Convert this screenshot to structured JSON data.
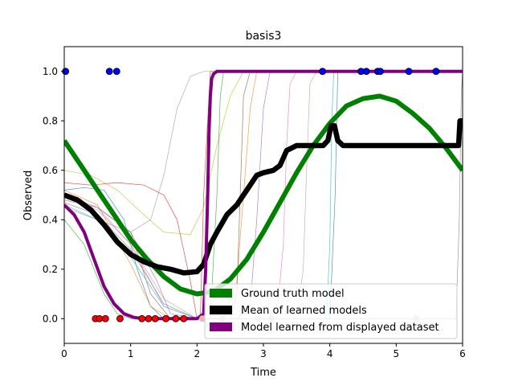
{
  "chart_data": {
    "type": "line",
    "title": "basis3",
    "xlabel": "Time",
    "ylabel": "Observed",
    "xlim": [
      0,
      6
    ],
    "ylim": [
      -0.1,
      1.1
    ],
    "xticks": [
      0,
      1,
      2,
      3,
      4,
      5,
      6
    ],
    "yticks": [
      0.0,
      0.2,
      0.4,
      0.6,
      0.8,
      1.0
    ],
    "xtick_labels": [
      "0",
      "1",
      "2",
      "3",
      "4",
      "5",
      "6"
    ],
    "ytick_labels": [
      "0.0",
      "0.2",
      "0.4",
      "0.6",
      "0.8",
      "1.0"
    ],
    "grid": false,
    "legend_position": "lower-right",
    "series": [
      {
        "name": "Ground truth model",
        "color": "#008000",
        "x": [
          0,
          0.25,
          0.5,
          0.75,
          1.0,
          1.25,
          1.5,
          1.75,
          2.0,
          2.25,
          2.5,
          2.75,
          3.0,
          3.25,
          3.5,
          3.75,
          4.0,
          4.25,
          4.5,
          4.75,
          5.0,
          5.25,
          5.5,
          5.75,
          6.0
        ],
        "y": [
          0.72,
          0.62,
          0.52,
          0.42,
          0.32,
          0.24,
          0.17,
          0.12,
          0.1,
          0.11,
          0.16,
          0.24,
          0.35,
          0.47,
          0.59,
          0.7,
          0.79,
          0.86,
          0.89,
          0.9,
          0.88,
          0.83,
          0.77,
          0.69,
          0.6
        ]
      },
      {
        "name": "Mean of learned models",
        "color": "#000000",
        "x": [
          0,
          0.2,
          0.4,
          0.6,
          0.8,
          1.0,
          1.2,
          1.4,
          1.6,
          1.8,
          2.0,
          2.1,
          2.2,
          2.3,
          2.45,
          2.6,
          2.7,
          2.8,
          2.9,
          3.0,
          3.15,
          3.25,
          3.35,
          3.5,
          3.7,
          3.9,
          3.97,
          4.02,
          4.07,
          4.12,
          4.2,
          4.4,
          4.8,
          5.2,
          5.6,
          5.94,
          5.96,
          6.0
        ],
        "y": [
          0.5,
          0.48,
          0.44,
          0.38,
          0.31,
          0.26,
          0.23,
          0.21,
          0.2,
          0.185,
          0.19,
          0.22,
          0.3,
          0.35,
          0.42,
          0.46,
          0.5,
          0.54,
          0.58,
          0.59,
          0.6,
          0.62,
          0.68,
          0.7,
          0.7,
          0.7,
          0.72,
          0.78,
          0.78,
          0.72,
          0.7,
          0.7,
          0.7,
          0.7,
          0.7,
          0.7,
          0.8,
          0.8
        ]
      },
      {
        "name": "Model learned from displayed dataset",
        "color": "#800080",
        "x": [
          0,
          0.15,
          0.3,
          0.45,
          0.6,
          0.75,
          0.9,
          1.05,
          1.2,
          1.4,
          1.6,
          1.8,
          2.0,
          2.1,
          2.13,
          2.16,
          2.18,
          2.2,
          2.22,
          2.25,
          2.3,
          2.5,
          3.0,
          4.0,
          5.0,
          6.0
        ],
        "y": [
          0.46,
          0.42,
          0.35,
          0.24,
          0.13,
          0.06,
          0.02,
          0.005,
          0.0,
          0.0,
          0.0,
          0.0,
          0.0,
          0.02,
          0.2,
          0.5,
          0.75,
          0.9,
          0.97,
          0.99,
          1.0,
          1.0,
          1.0,
          1.0,
          1.0,
          1.0
        ]
      }
    ],
    "thin_models": [
      {
        "color": "#999999",
        "x": [
          0,
          0.5,
          1.0,
          1.3,
          1.5,
          1.7,
          1.9,
          2.1,
          2.5,
          6.0
        ],
        "y": [
          0.45,
          0.4,
          0.35,
          0.4,
          0.58,
          0.85,
          0.98,
          1.0,
          1.0,
          1.0
        ]
      },
      {
        "color": "#d62728",
        "x": [
          0,
          0.4,
          0.8,
          1.2,
          1.5,
          1.7,
          1.9,
          2.0,
          2.05,
          2.1,
          2.2,
          6.0
        ],
        "y": [
          0.55,
          0.54,
          0.55,
          0.54,
          0.5,
          0.4,
          0.15,
          0.0,
          0.0,
          0.5,
          1.0,
          1.0
        ]
      },
      {
        "color": "#bcbd22",
        "x": [
          0,
          0.4,
          0.8,
          1.2,
          1.5,
          1.9,
          2.1,
          2.3,
          2.5,
          2.7,
          2.9,
          6.0
        ],
        "y": [
          0.6,
          0.58,
          0.52,
          0.42,
          0.35,
          0.34,
          0.45,
          0.7,
          0.9,
          1.0,
          1.0,
          1.0
        ]
      },
      {
        "color": "#1f77b4",
        "x": [
          0,
          0.3,
          0.6,
          0.9,
          1.1,
          1.3,
          1.5,
          1.8,
          2.5,
          3.5,
          4.0,
          4.08,
          4.12,
          4.16,
          6.0
        ],
        "y": [
          0.52,
          0.53,
          0.52,
          0.4,
          0.2,
          0.05,
          0.0,
          0.0,
          0.0,
          0.0,
          0.0,
          0.5,
          1.0,
          1.0,
          1.0
        ]
      },
      {
        "color": "#2ca02c",
        "x": [
          0,
          0.3,
          0.6,
          0.8,
          1.0,
          1.5,
          2.0,
          2.2,
          2.3,
          2.35,
          2.4,
          6.0
        ],
        "y": [
          0.4,
          0.3,
          0.1,
          0.02,
          0.0,
          0.0,
          0.0,
          0.0,
          0.5,
          0.9,
          1.0,
          1.0
        ]
      },
      {
        "color": "#ff7f0e",
        "x": [
          0,
          0.5,
          1.0,
          1.3,
          1.6,
          2.0,
          2.4,
          2.6,
          2.7,
          2.8,
          2.9,
          6.0
        ],
        "y": [
          0.52,
          0.46,
          0.22,
          0.05,
          0.0,
          0.0,
          0.0,
          0.15,
          0.5,
          0.85,
          1.0,
          1.0
        ]
      },
      {
        "color": "#9467bd",
        "x": [
          0,
          0.5,
          1.0,
          1.4,
          1.6,
          2.0,
          2.6,
          2.8,
          2.9,
          3.0,
          3.1,
          6.0
        ],
        "y": [
          0.5,
          0.45,
          0.35,
          0.15,
          0.02,
          0.0,
          0.0,
          0.05,
          0.4,
          0.85,
          1.0,
          1.0
        ]
      },
      {
        "color": "#8c564b",
        "x": [
          0,
          0.5,
          1.0,
          1.3,
          1.6,
          2.0,
          2.5,
          2.6,
          2.65,
          2.7,
          2.8,
          6.0
        ],
        "y": [
          0.48,
          0.45,
          0.35,
          0.1,
          0.0,
          0.0,
          0.0,
          0.1,
          0.5,
          0.9,
          1.0,
          1.0
        ]
      },
      {
        "color": "#e377c2",
        "x": [
          0,
          0.5,
          1.0,
          1.5,
          2.0,
          3.0,
          3.2,
          3.3,
          3.35,
          3.4,
          3.5,
          6.0
        ],
        "y": [
          0.48,
          0.45,
          0.3,
          0.05,
          0.0,
          0.0,
          0.0,
          0.3,
          0.7,
          0.95,
          1.0,
          1.0
        ]
      },
      {
        "color": "#17becf",
        "x": [
          0,
          0.5,
          1.0,
          1.5,
          2.0,
          3.5,
          3.95,
          4.0,
          4.03,
          4.06,
          4.1,
          6.0
        ],
        "y": [
          0.46,
          0.4,
          0.25,
          0.05,
          0.0,
          0.0,
          0.0,
          0.3,
          0.8,
          1.0,
          1.0,
          1.0
        ]
      },
      {
        "color": "#7f7f7f",
        "x": [
          0,
          0.5,
          1.0,
          1.5,
          2.0,
          4.0,
          5.9,
          5.95,
          5.98,
          6.0
        ],
        "y": [
          0.47,
          0.42,
          0.28,
          0.06,
          0.0,
          0.0,
          0.0,
          0.4,
          0.9,
          1.0
        ]
      },
      {
        "color": "#c49c94",
        "x": [
          0,
          0.5,
          1.0,
          1.5,
          2.0,
          2.5,
          3.5,
          3.6,
          3.65,
          3.7,
          3.8,
          6.0
        ],
        "y": [
          0.49,
          0.44,
          0.3,
          0.08,
          0.0,
          0.0,
          0.0,
          0.2,
          0.6,
          0.95,
          1.0,
          1.0
        ]
      }
    ],
    "points_red": {
      "color": "#ff0000",
      "x": [
        0.47,
        0.53,
        0.62,
        0.84,
        1.17,
        1.27,
        1.37,
        1.53,
        1.68,
        1.8
      ],
      "y": [
        0,
        0,
        0,
        0,
        0,
        0,
        0,
        0,
        0,
        0
      ]
    },
    "points_blue": {
      "color": "#0000ff",
      "x": [
        0.02,
        0.68,
        0.79,
        3.89,
        4.47,
        4.55,
        4.72,
        4.76,
        5.19,
        5.6
      ],
      "y": [
        1,
        1,
        1,
        1,
        1,
        1,
        1,
        1,
        1,
        1
      ]
    },
    "points_faded_red": {
      "color": "#e8b4b4",
      "x": [
        2.08,
        2.38,
        2.92,
        3.12,
        5.3
      ],
      "y": [
        0,
        0,
        0,
        0,
        0
      ]
    }
  }
}
